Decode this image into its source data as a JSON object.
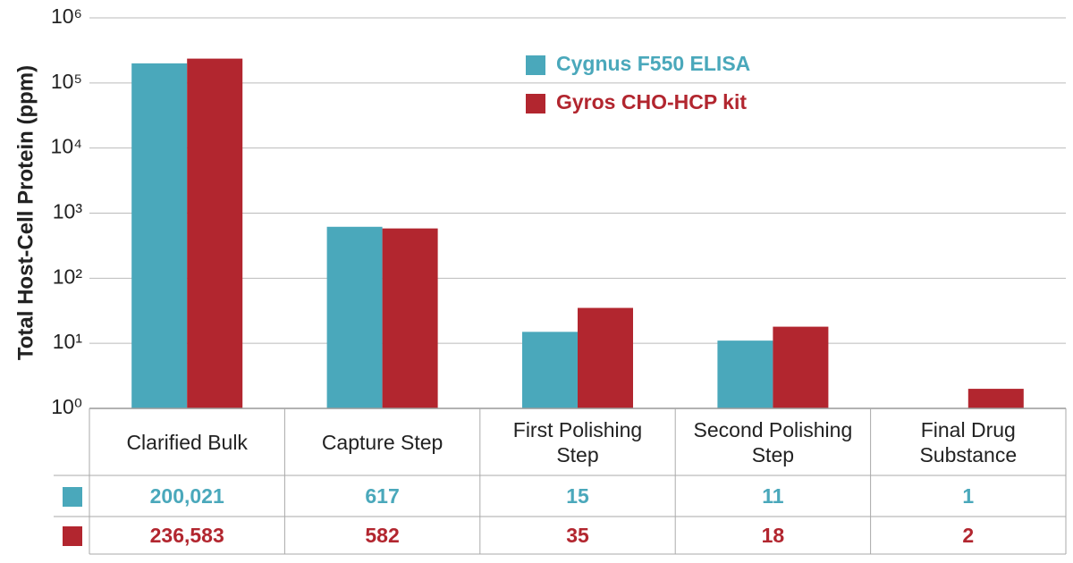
{
  "chart_data": {
    "type": "bar",
    "y_label": "Total Host-Cell Protein (ppm)",
    "categories": [
      "Clarified Bulk",
      "Capture Step",
      "First Polishing Step",
      "Second Polishing Step",
      "Final Drug Substance"
    ],
    "series": [
      {
        "name": "Cygnus F550 ELISA",
        "color": "#4aa8bb",
        "values": [
          200021,
          617,
          15,
          11,
          1
        ],
        "value_labels": [
          "200,021",
          "617",
          "15",
          "11",
          "1"
        ]
      },
      {
        "name": "Gyros CHO-HCP kit",
        "color": "#b2262f",
        "values": [
          236583,
          582,
          35,
          18,
          2
        ],
        "value_labels": [
          "236,583",
          "582",
          "35",
          "18",
          "2"
        ]
      }
    ],
    "ylim": [
      1,
      1000000
    ],
    "yticks": [
      {
        "value": 1,
        "label": "10⁰"
      },
      {
        "value": 10,
        "label": "10¹"
      },
      {
        "value": 100,
        "label": "10²"
      },
      {
        "value": 1000,
        "label": "10³"
      },
      {
        "value": 10000,
        "label": "10⁴"
      },
      {
        "value": 100000,
        "label": "10⁵"
      },
      {
        "value": 1000000,
        "label": "10⁶"
      }
    ],
    "log_scale": true,
    "grid": true
  }
}
